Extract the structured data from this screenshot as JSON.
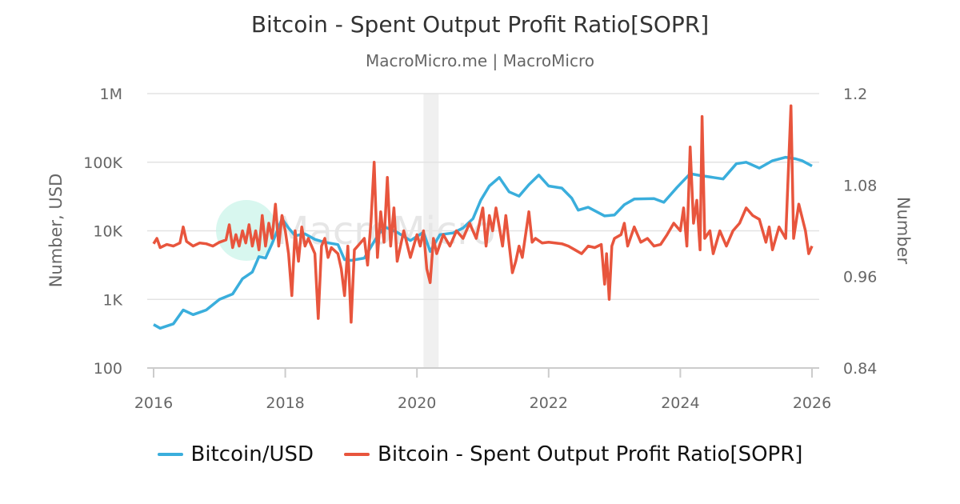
{
  "chart_data": {
    "type": "line",
    "title": "Bitcoin - Spent Output Profit Ratio[SOPR]",
    "subtitle": "MacroMicro.me | MacroMicro",
    "watermark": "MacroMicro",
    "x_ticks": [
      "2016",
      "2018",
      "2020",
      "2022",
      "2024",
      "2026"
    ],
    "xlim": [
      2016,
      2026
    ],
    "left_axis": {
      "label": "Number, USD",
      "scale": "log",
      "ylim": [
        100,
        1000000
      ],
      "ticks": [
        "100",
        "1K",
        "10K",
        "100K",
        "1M"
      ],
      "tick_values": [
        100,
        1000,
        10000,
        100000,
        1000000
      ]
    },
    "right_axis": {
      "label": "Number",
      "scale": "linear",
      "ylim": [
        0.84,
        1.2
      ],
      "ticks": [
        "0.84",
        "0.96",
        "1.08",
        "1.2"
      ],
      "tick_values": [
        0.84,
        0.96,
        1.08,
        1.2
      ]
    },
    "grid": true,
    "shaded_band": [
      2020.1,
      2020.33
    ],
    "legend_position": "bottom",
    "series": [
      {
        "name": "Bitcoin/USD",
        "axis": "left",
        "color": "#3aaedc",
        "points": [
          [
            2016.0,
            430
          ],
          [
            2016.1,
            380
          ],
          [
            2016.3,
            440
          ],
          [
            2016.45,
            700
          ],
          [
            2016.6,
            600
          ],
          [
            2016.8,
            700
          ],
          [
            2017.0,
            1000
          ],
          [
            2017.2,
            1200
          ],
          [
            2017.35,
            2000
          ],
          [
            2017.5,
            2500
          ],
          [
            2017.6,
            4200
          ],
          [
            2017.7,
            4000
          ],
          [
            2017.8,
            6500
          ],
          [
            2017.95,
            15000
          ],
          [
            2018.05,
            11000
          ],
          [
            2018.15,
            8500
          ],
          [
            2018.3,
            9000
          ],
          [
            2018.45,
            7500
          ],
          [
            2018.6,
            6800
          ],
          [
            2018.8,
            6300
          ],
          [
            2018.9,
            3800
          ],
          [
            2019.0,
            3700
          ],
          [
            2019.2,
            4000
          ],
          [
            2019.35,
            7000
          ],
          [
            2019.5,
            11500
          ],
          [
            2019.7,
            9500
          ],
          [
            2019.9,
            7200
          ],
          [
            2020.1,
            9500
          ],
          [
            2020.2,
            5000
          ],
          [
            2020.35,
            8800
          ],
          [
            2020.55,
            9300
          ],
          [
            2020.7,
            11000
          ],
          [
            2020.85,
            15000
          ],
          [
            2020.97,
            28000
          ],
          [
            2021.1,
            45000
          ],
          [
            2021.25,
            60000
          ],
          [
            2021.4,
            37000
          ],
          [
            2021.55,
            32000
          ],
          [
            2021.7,
            47000
          ],
          [
            2021.85,
            65000
          ],
          [
            2022.0,
            45000
          ],
          [
            2022.2,
            42000
          ],
          [
            2022.35,
            30000
          ],
          [
            2022.45,
            20000
          ],
          [
            2022.6,
            22000
          ],
          [
            2022.85,
            16500
          ],
          [
            2023.0,
            17000
          ],
          [
            2023.15,
            24000
          ],
          [
            2023.3,
            29000
          ],
          [
            2023.6,
            29500
          ],
          [
            2023.75,
            26000
          ],
          [
            2023.95,
            43000
          ],
          [
            2024.15,
            68000
          ],
          [
            2024.3,
            64000
          ],
          [
            2024.5,
            60000
          ],
          [
            2024.65,
            57000
          ],
          [
            2024.85,
            95000
          ],
          [
            2025.0,
            100000
          ],
          [
            2025.2,
            82000
          ],
          [
            2025.4,
            105000
          ],
          [
            2025.6,
            118000
          ],
          [
            2025.75,
            112000
          ],
          [
            2025.85,
            105000
          ],
          [
            2026.0,
            88000
          ]
        ]
      },
      {
        "name": "Bitcoin - Spent Output Profit Ratio[SOPR]",
        "axis": "right",
        "color": "#e8553d",
        "points": [
          [
            2016.0,
            1.003
          ],
          [
            2016.05,
            1.01
          ],
          [
            2016.1,
            0.998
          ],
          [
            2016.2,
            1.002
          ],
          [
            2016.3,
            1.0
          ],
          [
            2016.4,
            1.004
          ],
          [
            2016.45,
            1.025
          ],
          [
            2016.5,
            1.006
          ],
          [
            2016.6,
            1.0
          ],
          [
            2016.7,
            1.004
          ],
          [
            2016.8,
            1.003
          ],
          [
            2016.9,
            1.0
          ],
          [
            2017.0,
            1.005
          ],
          [
            2017.1,
            1.008
          ],
          [
            2017.15,
            1.028
          ],
          [
            2017.2,
            0.998
          ],
          [
            2017.25,
            1.015
          ],
          [
            2017.3,
            1.0
          ],
          [
            2017.35,
            1.02
          ],
          [
            2017.4,
            1.004
          ],
          [
            2017.45,
            1.028
          ],
          [
            2017.5,
            1.0
          ],
          [
            2017.55,
            1.02
          ],
          [
            2017.6,
            0.995
          ],
          [
            2017.65,
            1.04
          ],
          [
            2017.7,
            1.0
          ],
          [
            2017.75,
            1.03
          ],
          [
            2017.8,
            1.01
          ],
          [
            2017.85,
            1.055
          ],
          [
            2017.9,
            1.0
          ],
          [
            2017.95,
            1.04
          ],
          [
            2018.0,
            1.02
          ],
          [
            2018.05,
            0.99
          ],
          [
            2018.1,
            0.935
          ],
          [
            2018.15,
            1.02
          ],
          [
            2018.2,
            0.98
          ],
          [
            2018.25,
            1.025
          ],
          [
            2018.3,
            1.0
          ],
          [
            2018.35,
            1.01
          ],
          [
            2018.45,
            0.99
          ],
          [
            2018.5,
            0.905
          ],
          [
            2018.55,
            1.0
          ],
          [
            2018.6,
            1.01
          ],
          [
            2018.65,
            0.985
          ],
          [
            2018.7,
            0.998
          ],
          [
            2018.8,
            0.99
          ],
          [
            2018.85,
            0.97
          ],
          [
            2018.9,
            0.935
          ],
          [
            2018.95,
            1.0
          ],
          [
            2019.0,
            0.9
          ],
          [
            2019.05,
            0.995
          ],
          [
            2019.1,
            1.0
          ],
          [
            2019.2,
            1.01
          ],
          [
            2019.25,
            0.975
          ],
          [
            2019.3,
            1.03
          ],
          [
            2019.35,
            1.11
          ],
          [
            2019.4,
            0.985
          ],
          [
            2019.45,
            1.045
          ],
          [
            2019.5,
            1.005
          ],
          [
            2019.55,
            1.09
          ],
          [
            2019.6,
            1.0
          ],
          [
            2019.65,
            1.05
          ],
          [
            2019.7,
            0.98
          ],
          [
            2019.8,
            1.02
          ],
          [
            2019.9,
            0.985
          ],
          [
            2020.0,
            1.015
          ],
          [
            2020.05,
            1.0
          ],
          [
            2020.1,
            1.02
          ],
          [
            2020.15,
            0.97
          ],
          [
            2020.2,
            0.952
          ],
          [
            2020.25,
            1.01
          ],
          [
            2020.3,
            0.99
          ],
          [
            2020.4,
            1.015
          ],
          [
            2020.5,
            1.0
          ],
          [
            2020.6,
            1.02
          ],
          [
            2020.7,
            1.01
          ],
          [
            2020.8,
            1.03
          ],
          [
            2020.9,
            1.01
          ],
          [
            2021.0,
            1.05
          ],
          [
            2021.05,
            1.0
          ],
          [
            2021.1,
            1.04
          ],
          [
            2021.15,
            1.02
          ],
          [
            2021.2,
            1.05
          ],
          [
            2021.3,
            1.0
          ],
          [
            2021.35,
            1.04
          ],
          [
            2021.45,
            0.965
          ],
          [
            2021.5,
            0.98
          ],
          [
            2021.55,
            1.0
          ],
          [
            2021.6,
            0.985
          ],
          [
            2021.7,
            1.045
          ],
          [
            2021.75,
            1.005
          ],
          [
            2021.8,
            1.01
          ],
          [
            2021.9,
            1.004
          ],
          [
            2022.0,
            1.005
          ],
          [
            2022.2,
            1.003
          ],
          [
            2022.3,
            1.0
          ],
          [
            2022.4,
            0.995
          ],
          [
            2022.5,
            0.99
          ],
          [
            2022.6,
            1.0
          ],
          [
            2022.7,
            0.998
          ],
          [
            2022.8,
            1.002
          ],
          [
            2022.85,
            0.95
          ],
          [
            2022.88,
            0.99
          ],
          [
            2022.92,
            0.93
          ],
          [
            2022.96,
            1.0
          ],
          [
            2023.0,
            1.01
          ],
          [
            2023.1,
            1.015
          ],
          [
            2023.15,
            1.03
          ],
          [
            2023.2,
            1.0
          ],
          [
            2023.3,
            1.025
          ],
          [
            2023.4,
            1.005
          ],
          [
            2023.5,
            1.01
          ],
          [
            2023.6,
            1.0
          ],
          [
            2023.7,
            1.002
          ],
          [
            2023.8,
            1.015
          ],
          [
            2023.9,
            1.03
          ],
          [
            2024.0,
            1.02
          ],
          [
            2024.05,
            1.05
          ],
          [
            2024.1,
            1.0
          ],
          [
            2024.15,
            1.13
          ],
          [
            2024.2,
            1.03
          ],
          [
            2024.25,
            1.06
          ],
          [
            2024.3,
            0.995
          ],
          [
            2024.33,
            1.17
          ],
          [
            2024.37,
            1.01
          ],
          [
            2024.45,
            1.02
          ],
          [
            2024.5,
            0.99
          ],
          [
            2024.6,
            1.02
          ],
          [
            2024.7,
            1.0
          ],
          [
            2024.8,
            1.02
          ],
          [
            2024.9,
            1.03
          ],
          [
            2025.0,
            1.05
          ],
          [
            2025.1,
            1.04
          ],
          [
            2025.2,
            1.035
          ],
          [
            2025.3,
            1.005
          ],
          [
            2025.35,
            1.025
          ],
          [
            2025.4,
            0.995
          ],
          [
            2025.5,
            1.025
          ],
          [
            2025.6,
            1.01
          ],
          [
            2025.68,
            1.184
          ],
          [
            2025.72,
            1.01
          ],
          [
            2025.8,
            1.055
          ],
          [
            2025.9,
            1.02
          ],
          [
            2025.95,
            0.99
          ],
          [
            2026.0,
            1.0
          ]
        ]
      }
    ]
  }
}
